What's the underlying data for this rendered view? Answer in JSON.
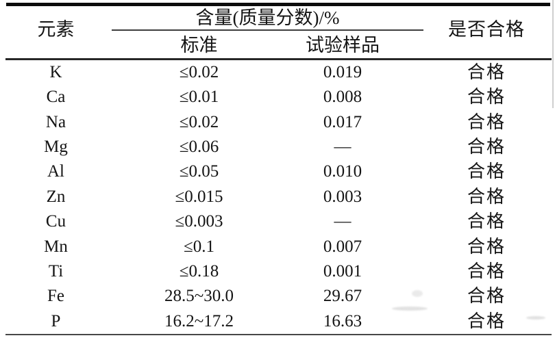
{
  "table": {
    "header": {
      "element": "元素",
      "content_group": "含量(质量分数)/%",
      "standard": "标准",
      "sample": "试验样品",
      "pass": "是否合格"
    },
    "rows": [
      {
        "element": "K",
        "standard": "≤0.02",
        "sample": "0.019",
        "pass": "合格"
      },
      {
        "element": "Ca",
        "standard": "≤0.01",
        "sample": "0.008",
        "pass": "合格"
      },
      {
        "element": "Na",
        "standard": "≤0.02",
        "sample": "0.017",
        "pass": "合格"
      },
      {
        "element": "Mg",
        "standard": "≤0.06",
        "sample": "—",
        "pass": "合格"
      },
      {
        "element": "Al",
        "standard": "≤0.05",
        "sample": "0.010",
        "pass": "合格"
      },
      {
        "element": "Zn",
        "standard": "≤0.015",
        "sample": "0.003",
        "pass": "合格"
      },
      {
        "element": "Cu",
        "standard": "≤0.003",
        "sample": "—",
        "pass": "合格"
      },
      {
        "element": "Mn",
        "standard": "≤0.1",
        "sample": "0.007",
        "pass": "合格"
      },
      {
        "element": "Ti",
        "standard": "≤0.18",
        "sample": "0.001",
        "pass": "合格"
      },
      {
        "element": "Fe",
        "standard": "28.5~30.0",
        "sample": "29.67",
        "pass": "合格"
      },
      {
        "element": "P",
        "standard": "16.2~17.2",
        "sample": "16.63",
        "pass": "合格"
      }
    ]
  },
  "colors": {
    "ink": "#141414",
    "top_rule": "#0c0c0c",
    "mid_rule": "#262626",
    "bottom_rule": "#474747",
    "background": "#ffffff"
  }
}
